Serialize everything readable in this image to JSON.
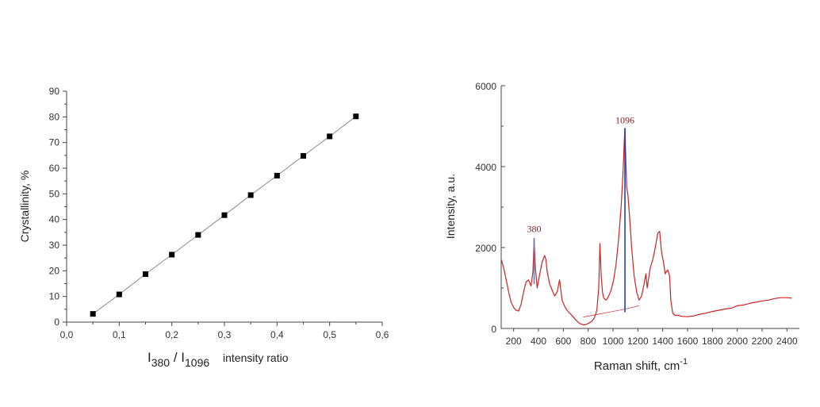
{
  "colors": {
    "axis": "#444444",
    "left_line": "#888888",
    "left_marker": "#000000",
    "spectrum": "#cc2222",
    "peak_line": "#1f3fbf",
    "peak_380_line": "#3a8fd8",
    "peak_label": "#8b1a1a",
    "baseline": "#cc4444"
  },
  "chart_data": [
    {
      "type": "scatter",
      "xlabel_main": "I",
      "xlabel_sub1": "380",
      "xlabel_slash": " / I",
      "xlabel_sub2": "1096",
      "xlabel_tail": "intensity ratio",
      "ylabel": "Crystallinity, %",
      "xlim": [
        0.0,
        0.6
      ],
      "ylim": [
        0,
        90
      ],
      "xticks": [
        0.0,
        0.1,
        0.2,
        0.3,
        0.4,
        0.5,
        0.6
      ],
      "xtick_labels": [
        "0,0",
        "0,1",
        "0,2",
        "0,3",
        "0,4",
        "0,5",
        "0,6"
      ],
      "yticks": [
        0,
        10,
        20,
        30,
        40,
        50,
        60,
        70,
        80,
        90
      ],
      "ytick_labels": [
        "0",
        "10",
        "20",
        "30",
        "40",
        "50",
        "60",
        "70",
        "80",
        "90"
      ],
      "grid": false,
      "connected_line": true,
      "marker": "square",
      "x": [
        0.05,
        0.1,
        0.15,
        0.2,
        0.25,
        0.3,
        0.35,
        0.4,
        0.45,
        0.5,
        0.55
      ],
      "y": [
        3.2,
        10.8,
        18.7,
        26.3,
        34.0,
        41.7,
        49.5,
        57.1,
        64.8,
        72.4,
        80.2
      ]
    },
    {
      "type": "line",
      "xlabel": "Raman shift, cm",
      "xlabel_sup": "-1",
      "ylabel": "Intensity, a.u.",
      "xlim": [
        100,
        2500
      ],
      "ylim": [
        0,
        6000
      ],
      "xticks": [
        200,
        400,
        600,
        800,
        1000,
        1200,
        1400,
        1600,
        1800,
        2000,
        2200,
        2400
      ],
      "xtick_labels": [
        "200",
        "400",
        "600",
        "800",
        "1000",
        "1200",
        "1400",
        "1600",
        "1800",
        "2000",
        "2200",
        "2400"
      ],
      "yticks": [
        0,
        2000,
        4000,
        6000
      ],
      "ytick_labels": [
        "0",
        "2000",
        "4000",
        "6000"
      ],
      "grid": false,
      "annotations": [
        {
          "text": "380",
          "x": 365,
          "y": 2230,
          "label_y": 2380
        },
        {
          "text": "1096",
          "x": 1096,
          "y": 4950,
          "label_y": 5070
        }
      ],
      "baseline_segment": {
        "x": [
          760,
          1100,
          1210
        ],
        "y": [
          280,
          480,
          560
        ]
      },
      "x": [
        100,
        120,
        140,
        160,
        180,
        200,
        220,
        240,
        260,
        280,
        300,
        320,
        340,
        355,
        365,
        375,
        390,
        410,
        430,
        450,
        460,
        470,
        490,
        510,
        530,
        550,
        570,
        580,
        590,
        610,
        630,
        650,
        670,
        690,
        710,
        730,
        750,
        770,
        790,
        810,
        830,
        850,
        870,
        885,
        895,
        905,
        915,
        925,
        945,
        965,
        985,
        1005,
        1025,
        1045,
        1065,
        1080,
        1090,
        1096,
        1102,
        1110,
        1120,
        1135,
        1150,
        1170,
        1190,
        1210,
        1230,
        1250,
        1265,
        1275,
        1285,
        1300,
        1320,
        1340,
        1360,
        1375,
        1390,
        1405,
        1420,
        1440,
        1455,
        1465,
        1480,
        1500,
        1520,
        1550,
        1600,
        1650,
        1700,
        1750,
        1800,
        1850,
        1900,
        1950,
        2000,
        2050,
        2100,
        2150,
        2200,
        2250,
        2300,
        2350,
        2400,
        2440
      ],
      "y": [
        1700,
        1500,
        1200,
        900,
        650,
        520,
        450,
        430,
        600,
        900,
        1150,
        1200,
        1050,
        1400,
        2230,
        1500,
        1000,
        1350,
        1650,
        1800,
        1700,
        1400,
        1100,
        950,
        800,
        900,
        1200,
        950,
        700,
        550,
        450,
        380,
        320,
        250,
        180,
        130,
        100,
        90,
        110,
        140,
        180,
        260,
        450,
        1000,
        2100,
        1300,
        900,
        750,
        700,
        800,
        950,
        1200,
        1600,
        2200,
        3000,
        3800,
        4600,
        4950,
        4300,
        3500,
        3300,
        2700,
        2000,
        1300,
        900,
        700,
        800,
        1100,
        1350,
        1000,
        1200,
        1500,
        1700,
        2000,
        2350,
        2400,
        1900,
        1650,
        1350,
        1450,
        1300,
        700,
        380,
        320,
        330,
        300,
        290,
        310,
        350,
        380,
        420,
        450,
        480,
        500,
        560,
        580,
        620,
        650,
        680,
        700,
        740,
        760,
        760,
        750
      ]
    }
  ]
}
